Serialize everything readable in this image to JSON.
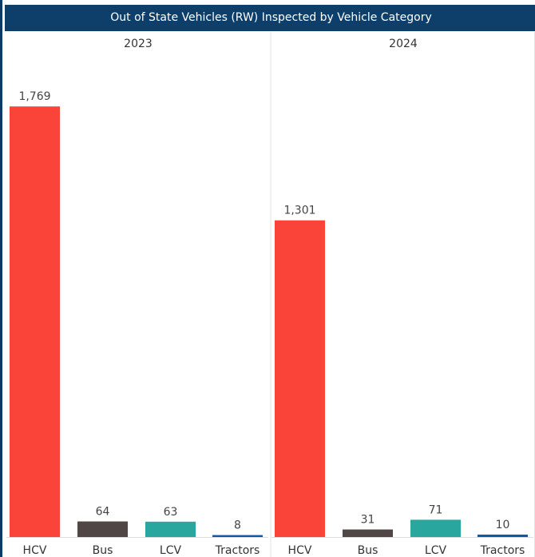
{
  "title": "Out of State Vehicles (RW) Inspected by Vehicle Category",
  "chart_data": {
    "type": "bar",
    "title": "Out of State Vehicles (RW) Inspected by Vehicle Category",
    "categories": [
      "HCV",
      "Bus",
      "LCV",
      "Tractors"
    ],
    "colors": {
      "HCV": "#fb4439",
      "Bus": "#4f4645",
      "LCV": "#29a69d",
      "Tractors": "#0d5aa8"
    },
    "panels": [
      {
        "label": "2023",
        "values": [
          1769,
          64,
          63,
          8
        ],
        "value_labels": [
          "1,769",
          "64",
          "63",
          "8"
        ]
      },
      {
        "label": "2024",
        "values": [
          1301,
          31,
          71,
          10
        ],
        "value_labels": [
          "1,301",
          "31",
          "71",
          "10"
        ]
      }
    ],
    "ylim": [
      0,
      1960
    ],
    "xlabel": "",
    "ylabel": "",
    "grid": false,
    "legend": "none"
  }
}
